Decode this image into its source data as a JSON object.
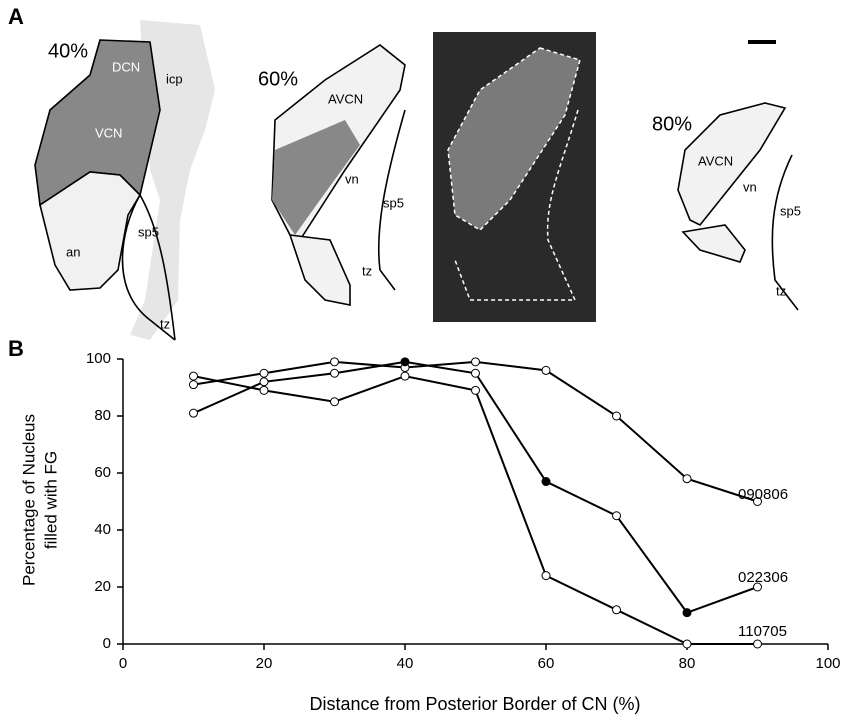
{
  "panel_labels": [
    "A",
    "B"
  ],
  "panel_a": {
    "sections": [
      {
        "label": "40%",
        "regions": [
          "DCN",
          "icp",
          "VCN",
          "an",
          "sp5",
          "tz"
        ]
      },
      {
        "label": "60%",
        "regions": [
          "AVCN",
          "vn",
          "sp5",
          "tz"
        ]
      },
      {
        "label": "80%",
        "regions": [
          "AVCN",
          "vn",
          "sp5",
          "tz"
        ]
      }
    ]
  },
  "chart_data": {
    "type": "line",
    "x_label": "Distance from Posterior Border of CN (%)",
    "y_label": [
      "Percentage of Nucleus",
      "filled with FG"
    ],
    "x": [
      10,
      20,
      30,
      40,
      50,
      60,
      70,
      80,
      90
    ],
    "series": [
      {
        "name": "090806",
        "color": "#000000",
        "values": [
          91,
          95,
          99,
          97,
          99,
          96,
          80,
          58,
          50
        ],
        "marker_colors": [
          "#ffffff",
          "#ffffff",
          "#ffffff",
          "#ffffff",
          "#ffffff",
          "#ffffff",
          "#ffffff",
          "#ffffff",
          "#ffffff"
        ]
      },
      {
        "name": "022306",
        "color": "#000000",
        "values": [
          81,
          92,
          95,
          99,
          95,
          57,
          45,
          11,
          20
        ],
        "marker_colors": [
          "#ffffff",
          "#ffffff",
          "#ffffff",
          "#000000",
          "#ffffff",
          "#000000",
          "#ffffff",
          "#000000",
          "#ffffff"
        ]
      },
      {
        "name": "110705",
        "color": "#000000",
        "values": [
          94,
          89,
          85,
          94,
          89,
          24,
          12,
          0,
          0
        ],
        "marker_colors": [
          "#ffffff",
          "#ffffff",
          "#ffffff",
          "#ffffff",
          "#ffffff",
          "#ffffff",
          "#ffffff",
          "#ffffff",
          "#ffffff"
        ]
      }
    ],
    "xlim": [
      0,
      100
    ],
    "xticks": [
      0,
      20,
      40,
      60,
      80,
      100
    ],
    "ylim": [
      0,
      100
    ],
    "yticks": [
      0,
      20,
      40,
      60,
      80,
      100
    ]
  }
}
